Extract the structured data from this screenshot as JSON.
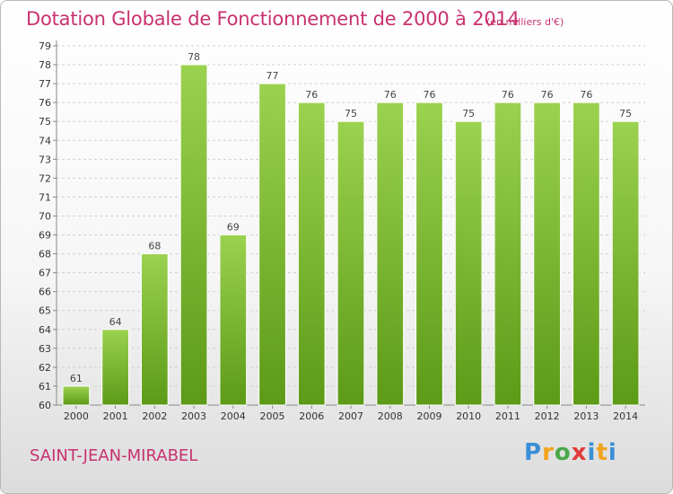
{
  "chart_data": {
    "type": "bar",
    "title": "Dotation Globale de Fonctionnement de 2000 à 2014",
    "subtitle": "(en milliers d'€)",
    "xlabel": "",
    "ylabel": "",
    "categories": [
      "2000",
      "2001",
      "2002",
      "2003",
      "2004",
      "2005",
      "2006",
      "2007",
      "2008",
      "2009",
      "2010",
      "2011",
      "2012",
      "2013",
      "2014"
    ],
    "values": [
      61,
      64,
      68,
      78,
      69,
      77,
      76,
      75,
      76,
      76,
      75,
      76,
      76,
      76,
      75
    ],
    "ylim": [
      60,
      79
    ],
    "yticks": [
      60,
      61,
      62,
      63,
      64,
      65,
      66,
      67,
      68,
      69,
      70,
      71,
      72,
      73,
      74,
      75,
      76,
      77,
      78,
      79
    ],
    "grid": true,
    "bar_color": "#7dc232"
  },
  "footer": {
    "commune": "SAINT-JEAN-MIRABEL",
    "logo_parts": [
      "P",
      "r",
      "o",
      "x",
      "i",
      "t",
      "i"
    ]
  }
}
